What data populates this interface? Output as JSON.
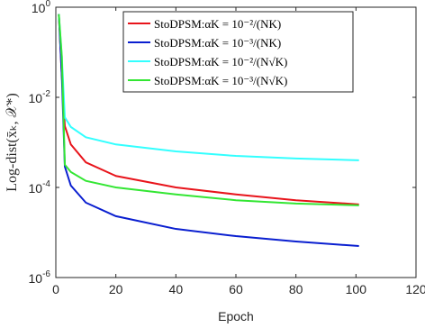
{
  "chart_data": {
    "type": "line",
    "xlabel": "Epoch",
    "ylabel": "Log-dist(x̄ₖ, 𝒳*)",
    "x": [
      1,
      2,
      3,
      5,
      10,
      20,
      40,
      60,
      80,
      101
    ],
    "series": [
      {
        "name": "StoDPSM:αK = 10⁻²/(NK)",
        "color": "#e8141b",
        "values": [
          0.7,
          0.03,
          0.0023,
          0.0009,
          0.00036,
          0.00018,
          0.0001,
          7e-05,
          5.2e-05,
          4.2e-05
        ]
      },
      {
        "name": "StoDPSM:αK = 10⁻³/(NK)",
        "color": "#0a1fd0",
        "values": [
          0.7,
          0.03,
          0.00029,
          0.00011,
          4.6e-05,
          2.3e-05,
          1.2e-05,
          8.3e-06,
          6.3e-06,
          5e-06
        ]
      },
      {
        "name": "StoDPSM:αK = 10⁻²/(N√K)",
        "color": "#33ffff",
        "values": [
          0.7,
          0.08,
          0.0036,
          0.0022,
          0.0013,
          0.0009,
          0.00063,
          0.0005,
          0.00044,
          0.0004
        ]
      },
      {
        "name": "StoDPSM:αK = 10⁻³/(N√K)",
        "color": "#33e633",
        "values": [
          0.7,
          0.08,
          0.00032,
          0.00022,
          0.00014,
          0.0001,
          7e-05,
          5.2e-05,
          4.4e-05,
          4e-05
        ]
      }
    ],
    "xlim": [
      0,
      120
    ],
    "xticks": [
      0,
      20,
      40,
      60,
      80,
      100,
      120
    ],
    "ylim": [
      1e-06,
      1
    ],
    "yticks": [
      {
        "value": 1,
        "label": "10",
        "exponent": "0"
      },
      {
        "value": 0.01,
        "label": "10",
        "exponent": "-2"
      },
      {
        "value": 0.0001,
        "label": "10",
        "exponent": "-4"
      },
      {
        "value": 1e-06,
        "label": "10",
        "exponent": "-6"
      }
    ],
    "log_y": true,
    "legend": "top"
  }
}
